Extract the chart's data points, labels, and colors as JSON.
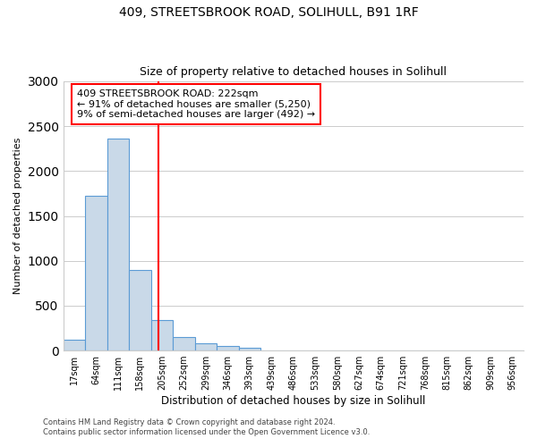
{
  "title": "409, STREETSBROOK ROAD, SOLIHULL, B91 1RF",
  "subtitle": "Size of property relative to detached houses in Solihull",
  "xlabel": "Distribution of detached houses by size in Solihull",
  "ylabel": "Number of detached properties",
  "bin_labels": [
    "17sqm",
    "64sqm",
    "111sqm",
    "158sqm",
    "205sqm",
    "252sqm",
    "299sqm",
    "346sqm",
    "393sqm",
    "439sqm",
    "486sqm",
    "533sqm",
    "580sqm",
    "627sqm",
    "674sqm",
    "721sqm",
    "768sqm",
    "815sqm",
    "862sqm",
    "909sqm",
    "956sqm"
  ],
  "bar_heights": [
    120,
    1720,
    2360,
    900,
    340,
    150,
    85,
    50,
    30,
    0,
    0,
    0,
    0,
    0,
    0,
    0,
    0,
    0,
    0,
    0,
    0
  ],
  "bar_color": "#c9d9e8",
  "bar_edgecolor": "#5b9bd5",
  "vline_color": "red",
  "annotation_title": "409 STREETSBROOK ROAD: 222sqm",
  "annotation_line1": "← 91% of detached houses are smaller (5,250)",
  "annotation_line2": "9% of semi-detached houses are larger (492) →",
  "annotation_box_color": "white",
  "annotation_box_edgecolor": "red",
  "ylim": [
    0,
    3000
  ],
  "yticks": [
    0,
    500,
    1000,
    1500,
    2000,
    2500,
    3000
  ],
  "footer1": "Contains HM Land Registry data © Crown copyright and database right 2024.",
  "footer2": "Contains public sector information licensed under the Open Government Licence v3.0.",
  "background_color": "white",
  "grid_color": "#cccccc"
}
